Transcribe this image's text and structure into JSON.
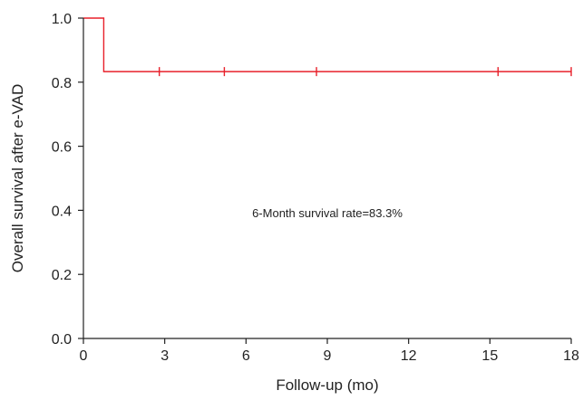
{
  "chart_data": {
    "type": "line",
    "title": "",
    "xlabel": "Follow-up (mo)",
    "ylabel": "Overall survival after e-VAD",
    "xlim": [
      0,
      18
    ],
    "ylim": [
      0,
      1.0
    ],
    "x_ticks": [
      "0",
      "3",
      "6",
      "9",
      "12",
      "15",
      "18"
    ],
    "y_ticks": [
      "0.0",
      "0.2",
      "0.4",
      "0.6",
      "0.8",
      "1.0"
    ],
    "grid": false,
    "line_color": "#e8202a",
    "series": [
      {
        "step": [
          [
            0,
            1.0
          ],
          [
            0.75,
            1.0
          ],
          [
            0.75,
            0.833
          ],
          [
            18,
            0.833
          ]
        ],
        "censored_x": [
          2.8,
          5.2,
          8.6,
          15.3,
          18
        ],
        "censored_y": 0.833
      }
    ],
    "annotation": "6-Month survival rate=83.3%"
  }
}
